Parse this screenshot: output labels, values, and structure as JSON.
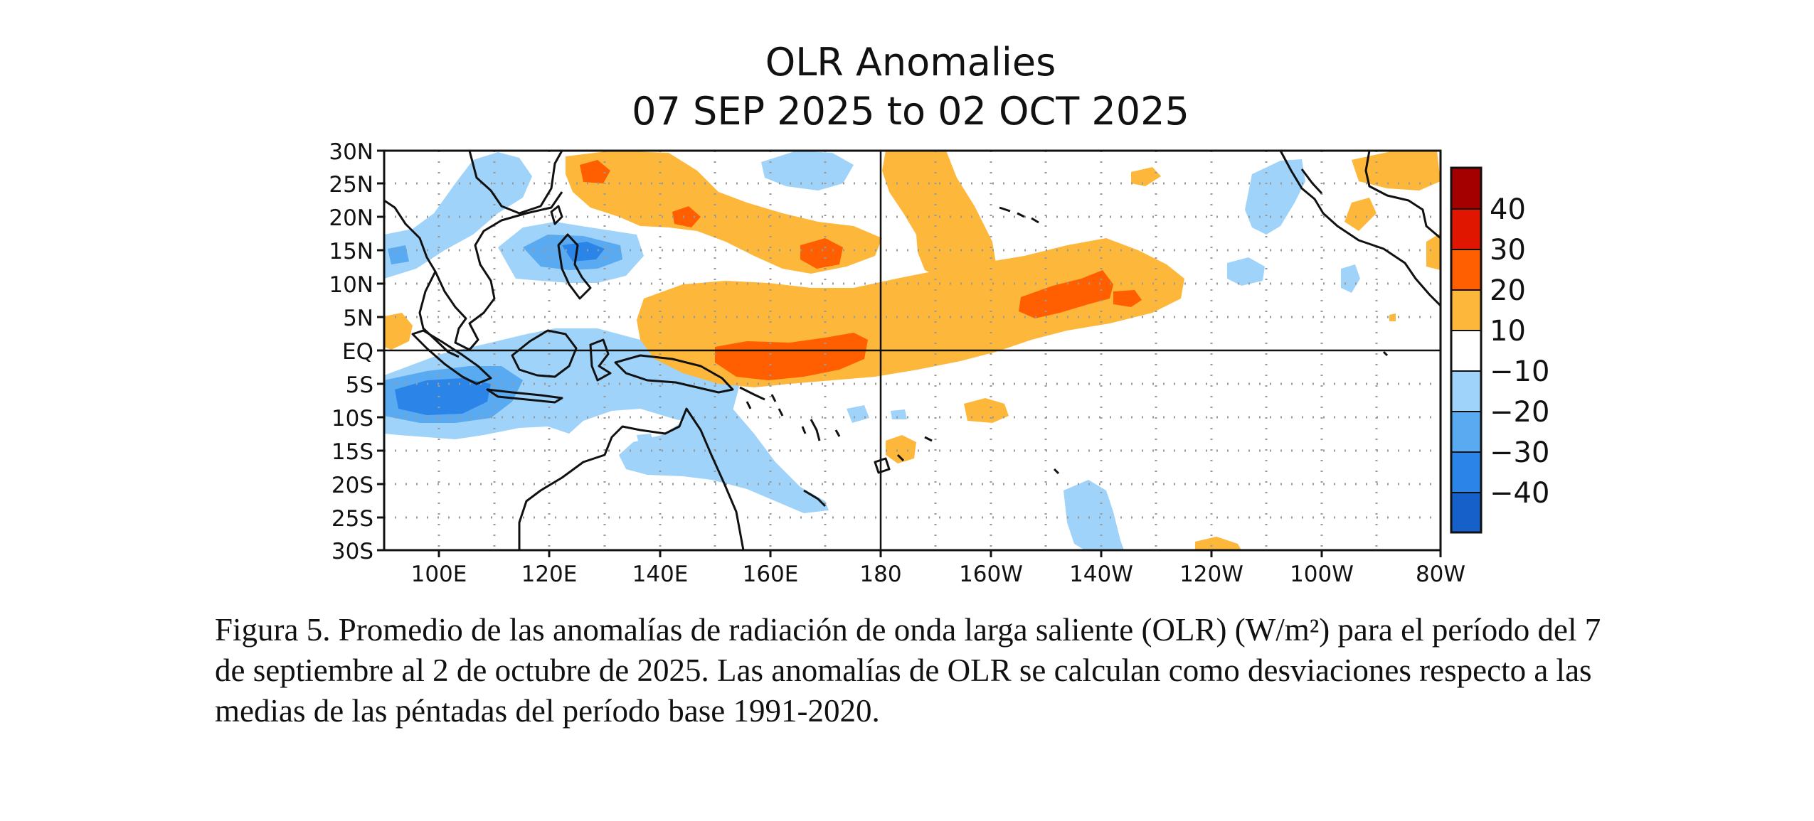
{
  "figure": {
    "title_line1": "OLR Anomalies",
    "title_line2": "07 SEP 2025 to 02 OCT 2025",
    "caption": "Figura 5. Promedio de las anomalías de radiación de onda larga saliente (OLR) (W/m²) para el período del 7 de septiembre al 2 de octubre de 2025. Las anomalías de OLR se calculan como desviaciones respecto a las medias de las péntadas del período base 1991-2020."
  },
  "map": {
    "lat_labels": [
      "30N",
      "25N",
      "20N",
      "15N",
      "10N",
      "5N",
      "EQ",
      "5S",
      "10S",
      "15S",
      "20S",
      "25S",
      "30S"
    ],
    "lon_labels": [
      "100E",
      "120E",
      "140E",
      "160E",
      "180",
      "160W",
      "140W",
      "120W",
      "100W",
      "80W"
    ],
    "colorbar_labels": [
      "40",
      "30",
      "20",
      "10",
      "−10",
      "−20",
      "−30",
      "−40"
    ],
    "colors": {
      "pos40": "#a50000",
      "pos30": "#e01600",
      "pos20": "#ff5f00",
      "pos10": "#fdb73a",
      "neutral": "#ffffff",
      "neg10": "#9fd3f9",
      "neg20": "#5aaaf2",
      "neg30": "#2b85e8",
      "neg40": "#1560c9"
    }
  }
}
